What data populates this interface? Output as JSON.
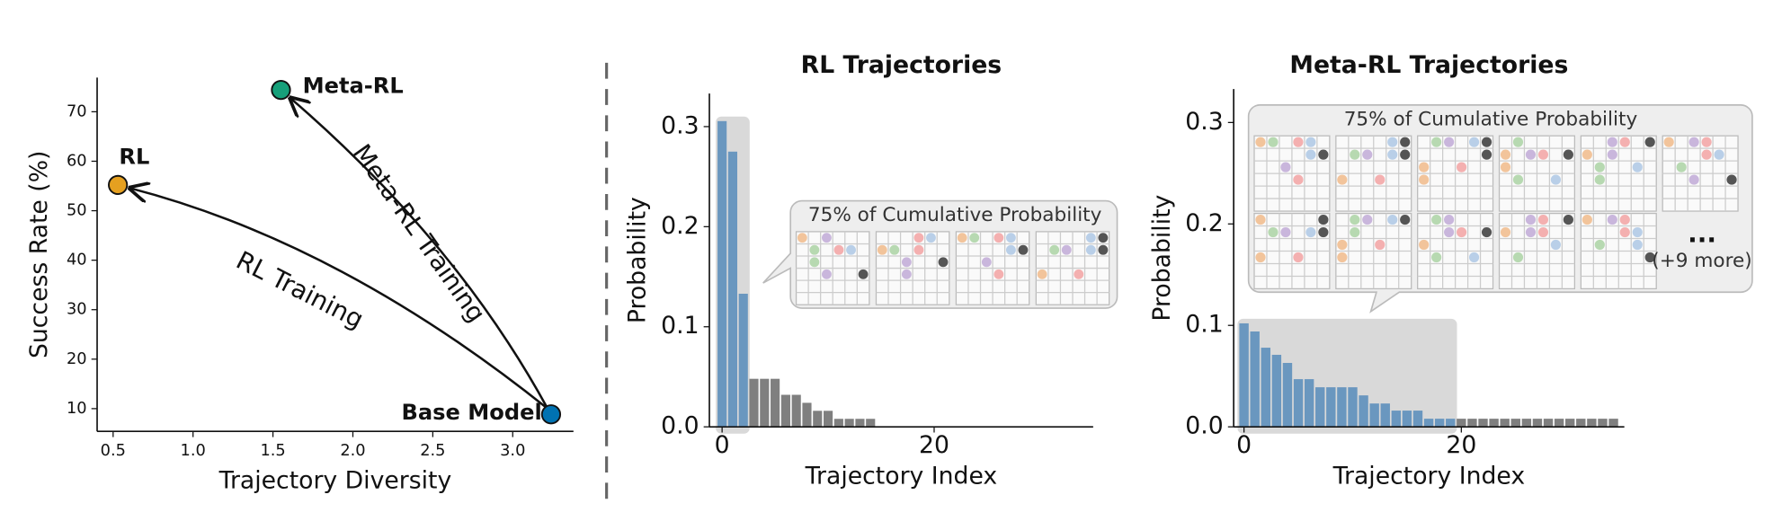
{
  "chart_data": [
    {
      "type": "scatter",
      "xlabel": "Trajectory Diversity",
      "ylabel": "Success Rate (%)",
      "series": [
        {
          "name": "Base Model",
          "color": "#0072b2",
          "x": [
            3.24
          ],
          "values": [
            8.85
          ]
        },
        {
          "name": "RL",
          "color": "#e5a020",
          "x": [
            0.53
          ],
          "values": [
            55.2
          ]
        },
        {
          "name": "Meta-RL",
          "color": "#16a07a",
          "x": [
            1.55
          ],
          "values": [
            74.4
          ]
        }
      ],
      "annotations": [
        "RL Training",
        "Meta-RL Training"
      ],
      "xlim": [
        0.4,
        3.38
      ],
      "ylim": [
        5.4,
        76.9
      ],
      "xticks": [
        0.5,
        {
          "value": 1,
          "label": "1.0"
        },
        1.5,
        {
          "value": 2,
          "label": "2.0"
        },
        2.5,
        {
          "value": 3,
          "label": "3.0"
        }
      ],
      "yticks": [
        10,
        20,
        30,
        40,
        50,
        60,
        70
      ]
    },
    {
      "type": "bar",
      "title": "RL Trajectories",
      "xlabel": "Trajectory Index",
      "ylabel": "Probability",
      "x": [
        0,
        1,
        2,
        3,
        4,
        5,
        6,
        7,
        8,
        9,
        10,
        11,
        12,
        13,
        14
      ],
      "values": [
        0.3055,
        0.275,
        0.133,
        0.048,
        0.048,
        0.048,
        0.032,
        0.032,
        0.024,
        0.016,
        0.016,
        0.008,
        0.008,
        0.008,
        0.008
      ],
      "colors": [
        "#6a97bf",
        "#6a97bf",
        "#6a97bf",
        "#7f7f7f",
        "#7f7f7f",
        "#7f7f7f",
        "#7f7f7f",
        "#7f7f7f",
        "#7f7f7f",
        "#7f7f7f",
        "#7f7f7f",
        "#7f7f7f",
        "#7f7f7f",
        "#7f7f7f",
        "#7f7f7f"
      ],
      "annotations": [
        "75% of Cumulative Probability"
      ],
      "xlim": [
        -1.2,
        35
      ],
      "ylim": [
        0,
        0.333
      ],
      "xticks": [
        0,
        20
      ],
      "yticks": [
        {
          "value": 0,
          "label": "0.0"
        },
        0.1,
        0.2,
        0.3
      ]
    },
    {
      "type": "bar",
      "title": "Meta-RL Trajectories",
      "xlabel": "Trajectory Index",
      "ylabel": "Probability",
      "x": [
        0,
        1,
        2,
        3,
        4,
        5,
        6,
        7,
        8,
        9,
        10,
        11,
        12,
        13,
        14,
        15,
        16,
        17,
        18,
        19,
        20,
        21,
        22,
        23,
        24,
        25,
        26,
        27,
        28,
        29,
        30,
        31,
        32,
        33,
        34
      ],
      "values": [
        0.102,
        0.094,
        0.078,
        0.071,
        0.063,
        0.047,
        0.047,
        0.039,
        0.039,
        0.039,
        0.039,
        0.031,
        0.023,
        0.023,
        0.016,
        0.016,
        0.016,
        0.008,
        0.008,
        0.008,
        0.008,
        0.008,
        0.008,
        0.008,
        0.008,
        0.008,
        0.008,
        0.008,
        0.008,
        0.008,
        0.008,
        0.008,
        0.008,
        0.008,
        0.008
      ],
      "colors": [
        "#6a97bf",
        "#6a97bf",
        "#6a97bf",
        "#6a97bf",
        "#6a97bf",
        "#6a97bf",
        "#6a97bf",
        "#6a97bf",
        "#6a97bf",
        "#6a97bf",
        "#6a97bf",
        "#6a97bf",
        "#6a97bf",
        "#6a97bf",
        "#6a97bf",
        "#6a97bf",
        "#6a97bf",
        "#6a97bf",
        "#6a97bf",
        "#6a97bf",
        "#7f7f7f",
        "#7f7f7f",
        "#7f7f7f",
        "#7f7f7f",
        "#7f7f7f",
        "#7f7f7f",
        "#7f7f7f",
        "#7f7f7f",
        "#7f7f7f",
        "#7f7f7f",
        "#7f7f7f",
        "#7f7f7f",
        "#7f7f7f",
        "#7f7f7f",
        "#7f7f7f"
      ],
      "annotations": [
        "75% of Cumulative Probability",
        "...",
        "(+9 more)"
      ],
      "xlim": [
        -0.95,
        35
      ],
      "ylim": [
        0,
        0.333
      ],
      "xticks": [
        0,
        20
      ],
      "yticks": [
        {
          "value": 0,
          "label": "0.0"
        },
        0.1,
        0.2,
        0.3
      ]
    }
  ]
}
